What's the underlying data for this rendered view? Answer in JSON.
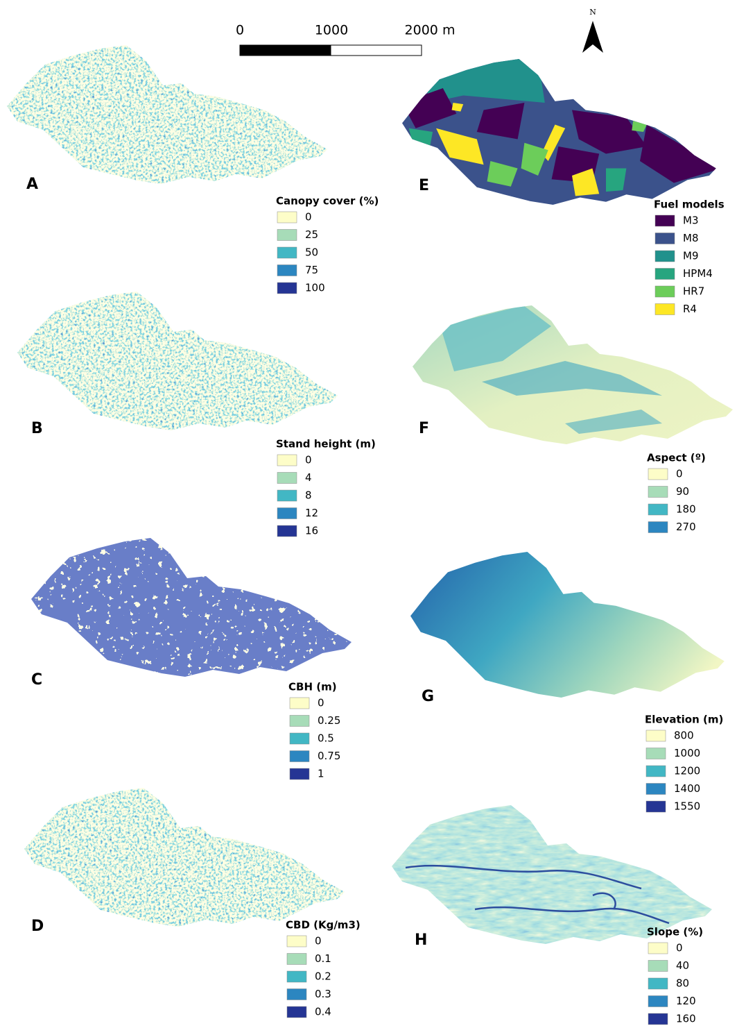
{
  "scale_bar": {
    "labels": [
      "0",
      "1000",
      "2000 m"
    ]
  },
  "north_arrow": {
    "label": "N"
  },
  "panels": [
    {
      "letter": "A",
      "legend": {
        "title": "Canopy cover (%)",
        "items": [
          {
            "label": "0",
            "color": "#fdfdc8"
          },
          {
            "label": "25",
            "color": "#a7dcb8"
          },
          {
            "label": "50",
            "color": "#42b7c4"
          },
          {
            "label": "75",
            "color": "#2c86c0"
          },
          {
            "label": "100",
            "color": "#253594"
          }
        ]
      }
    },
    {
      "letter": "B",
      "legend": {
        "title": "Stand height (m)",
        "items": [
          {
            "label": "0",
            "color": "#fdfdc8"
          },
          {
            "label": "4",
            "color": "#a7dcb8"
          },
          {
            "label": "8",
            "color": "#42b7c4"
          },
          {
            "label": "12",
            "color": "#2c86c0"
          },
          {
            "label": "16",
            "color": "#253594"
          }
        ]
      }
    },
    {
      "letter": "C",
      "legend": {
        "title": "CBH (m)",
        "items": [
          {
            "label": "0",
            "color": "#fdfdc8"
          },
          {
            "label": "0.25",
            "color": "#a7dcb8"
          },
          {
            "label": "0.5",
            "color": "#42b7c4"
          },
          {
            "label": "0.75",
            "color": "#2c86c0"
          },
          {
            "label": "1",
            "color": "#253594"
          }
        ]
      }
    },
    {
      "letter": "D",
      "legend": {
        "title": "CBD (Kg/m3)",
        "items": [
          {
            "label": "0",
            "color": "#fdfdc8"
          },
          {
            "label": "0.1",
            "color": "#a7dcb8"
          },
          {
            "label": "0.2",
            "color": "#42b7c4"
          },
          {
            "label": "0.3",
            "color": "#2c86c0"
          },
          {
            "label": "0.4",
            "color": "#253594"
          }
        ]
      }
    },
    {
      "letter": "E",
      "legend": {
        "title": "Fuel models",
        "items": [
          {
            "label": "M3",
            "color": "#440154"
          },
          {
            "label": "M8",
            "color": "#3b528b"
          },
          {
            "label": "M9",
            "color": "#21918c"
          },
          {
            "label": "HPM4",
            "color": "#27a57f"
          },
          {
            "label": "HR7",
            "color": "#6ccd5a"
          },
          {
            "label": "R4",
            "color": "#fde725"
          }
        ]
      }
    },
    {
      "letter": "F",
      "legend": {
        "title": "Aspect (º)",
        "items": [
          {
            "label": "0",
            "color": "#fdfdc8"
          },
          {
            "label": "90",
            "color": "#a7dcb8"
          },
          {
            "label": "180",
            "color": "#42b7c4"
          },
          {
            "label": "270",
            "color": "#2c86c0"
          }
        ]
      }
    },
    {
      "letter": "G",
      "legend": {
        "title": "Elevation (m)",
        "items": [
          {
            "label": "800",
            "color": "#fdfdc8"
          },
          {
            "label": "1000",
            "color": "#a7dcb8"
          },
          {
            "label": "1200",
            "color": "#42b7c4"
          },
          {
            "label": "1400",
            "color": "#2c86c0"
          },
          {
            "label": "1550",
            "color": "#253594"
          }
        ]
      }
    },
    {
      "letter": "H",
      "legend": {
        "title": "Slope (%)",
        "items": [
          {
            "label": "0",
            "color": "#fdfdc8"
          },
          {
            "label": "40",
            "color": "#a7dcb8"
          },
          {
            "label": "80",
            "color": "#42b7c4"
          },
          {
            "label": "120",
            "color": "#2c86c0"
          },
          {
            "label": "160",
            "color": "#253594"
          }
        ]
      }
    }
  ]
}
